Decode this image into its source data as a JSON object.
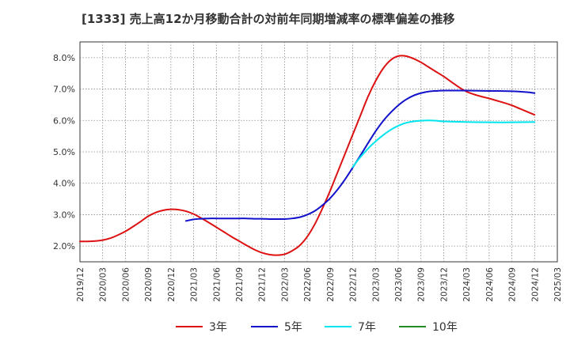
{
  "chart_data": {
    "type": "line",
    "title": "[1333]  売上高12か月移動合計の対前年同期増減率の標準偏差の推移",
    "xlabel": "",
    "ylabel": "",
    "ylim": [
      1.5,
      8.5
    ],
    "yticks": [
      2.0,
      3.0,
      4.0,
      5.0,
      6.0,
      7.0,
      8.0
    ],
    "ytick_labels": [
      "2.0%",
      "3.0%",
      "4.0%",
      "5.0%",
      "6.0%",
      "7.0%",
      "8.0%"
    ],
    "xtick_labels": [
      "2019/12",
      "2020/03",
      "2020/06",
      "2020/09",
      "2020/12",
      "2021/03",
      "2021/06",
      "2021/09",
      "2021/12",
      "2022/03",
      "2022/06",
      "2022/09",
      "2022/12",
      "2023/03",
      "2023/06",
      "2023/09",
      "2023/12",
      "2024/03",
      "2024/06",
      "2024/09",
      "2024/12",
      "2025/03"
    ],
    "grid": true,
    "legend_position": "bottom",
    "series": [
      {
        "name": "3年",
        "color": "#dd1111",
        "points": [
          [
            "2019/12",
            2.15
          ],
          [
            "2020/01",
            2.15
          ],
          [
            "2020/02",
            2.16
          ],
          [
            "2020/03",
            2.19
          ],
          [
            "2020/04",
            2.25
          ],
          [
            "2020/05",
            2.35
          ],
          [
            "2020/06",
            2.47
          ],
          [
            "2020/07",
            2.62
          ],
          [
            "2020/08",
            2.78
          ],
          [
            "2020/09",
            2.95
          ],
          [
            "2020/10",
            3.07
          ],
          [
            "2020/11",
            3.14
          ],
          [
            "2020/12",
            3.17
          ],
          [
            "2021/01",
            3.16
          ],
          [
            "2021/02",
            3.11
          ],
          [
            "2021/03",
            3.02
          ],
          [
            "2021/04",
            2.89
          ],
          [
            "2021/05",
            2.75
          ],
          [
            "2021/06",
            2.6
          ],
          [
            "2021/07",
            2.45
          ],
          [
            "2021/08",
            2.3
          ],
          [
            "2021/09",
            2.16
          ],
          [
            "2021/10",
            2.02
          ],
          [
            "2021/11",
            1.89
          ],
          [
            "2021/12",
            1.79
          ],
          [
            "2022/01",
            1.73
          ],
          [
            "2022/02",
            1.71
          ],
          [
            "2022/03",
            1.74
          ],
          [
            "2022/04",
            1.85
          ],
          [
            "2022/05",
            2.02
          ],
          [
            "2022/06",
            2.3
          ],
          [
            "2022/07",
            2.7
          ],
          [
            "2022/08",
            3.2
          ],
          [
            "2022/09",
            3.75
          ],
          [
            "2022/10",
            4.35
          ],
          [
            "2022/11",
            4.95
          ],
          [
            "2022/12",
            5.55
          ],
          [
            "2023/01",
            6.15
          ],
          [
            "2023/02",
            6.75
          ],
          [
            "2023/03",
            7.25
          ],
          [
            "2023/04",
            7.65
          ],
          [
            "2023/05",
            7.92
          ],
          [
            "2023/06",
            8.05
          ],
          [
            "2023/07",
            8.05
          ],
          [
            "2023/08",
            7.97
          ],
          [
            "2023/09",
            7.85
          ],
          [
            "2023/10",
            7.7
          ],
          [
            "2023/11",
            7.55
          ],
          [
            "2023/12",
            7.4
          ],
          [
            "2024/01",
            7.23
          ],
          [
            "2024/02",
            7.06
          ],
          [
            "2024/03",
            6.92
          ],
          [
            "2024/04",
            6.83
          ],
          [
            "2024/05",
            6.76
          ],
          [
            "2024/06",
            6.7
          ],
          [
            "2024/07",
            6.63
          ],
          [
            "2024/08",
            6.56
          ],
          [
            "2024/09",
            6.48
          ],
          [
            "2024/10",
            6.38
          ],
          [
            "2024/11",
            6.28
          ],
          [
            "2024/12",
            6.18
          ]
        ]
      },
      {
        "name": "5年",
        "color": "#1111cc",
        "points": [
          [
            "2021/02",
            2.8
          ],
          [
            "2021/03",
            2.85
          ],
          [
            "2021/04",
            2.87
          ],
          [
            "2021/05",
            2.88
          ],
          [
            "2021/06",
            2.88
          ],
          [
            "2021/07",
            2.88
          ],
          [
            "2021/08",
            2.88
          ],
          [
            "2021/09",
            2.88
          ],
          [
            "2021/10",
            2.88
          ],
          [
            "2021/11",
            2.87
          ],
          [
            "2021/12",
            2.87
          ],
          [
            "2022/01",
            2.86
          ],
          [
            "2022/02",
            2.86
          ],
          [
            "2022/03",
            2.86
          ],
          [
            "2022/04",
            2.88
          ],
          [
            "2022/05",
            2.92
          ],
          [
            "2022/06",
            3.0
          ],
          [
            "2022/07",
            3.12
          ],
          [
            "2022/08",
            3.3
          ],
          [
            "2022/09",
            3.52
          ],
          [
            "2022/10",
            3.8
          ],
          [
            "2022/11",
            4.13
          ],
          [
            "2022/12",
            4.5
          ],
          [
            "2023/01",
            4.88
          ],
          [
            "2023/02",
            5.27
          ],
          [
            "2023/03",
            5.65
          ],
          [
            "2023/04",
            5.98
          ],
          [
            "2023/05",
            6.25
          ],
          [
            "2023/06",
            6.48
          ],
          [
            "2023/07",
            6.66
          ],
          [
            "2023/08",
            6.79
          ],
          [
            "2023/09",
            6.87
          ],
          [
            "2023/10",
            6.92
          ],
          [
            "2023/11",
            6.94
          ],
          [
            "2023/12",
            6.95
          ],
          [
            "2024/03",
            6.95
          ],
          [
            "2024/06",
            6.94
          ],
          [
            "2024/09",
            6.93
          ],
          [
            "2024/11",
            6.9
          ],
          [
            "2024/12",
            6.87
          ]
        ]
      },
      {
        "name": "7年",
        "color": "#00e5ee",
        "points": [
          [
            "2022/12",
            4.52
          ],
          [
            "2023/01",
            4.83
          ],
          [
            "2023/02",
            5.1
          ],
          [
            "2023/03",
            5.33
          ],
          [
            "2023/04",
            5.53
          ],
          [
            "2023/05",
            5.7
          ],
          [
            "2023/06",
            5.83
          ],
          [
            "2023/07",
            5.92
          ],
          [
            "2023/08",
            5.97
          ],
          [
            "2023/09",
            5.99
          ],
          [
            "2023/10",
            6.0
          ],
          [
            "2023/11",
            5.99
          ],
          [
            "2023/12",
            5.97
          ],
          [
            "2024/03",
            5.95
          ],
          [
            "2024/06",
            5.94
          ],
          [
            "2024/09",
            5.94
          ],
          [
            "2024/12",
            5.95
          ]
        ]
      },
      {
        "name": "10年",
        "color": "#228b22",
        "points": []
      }
    ]
  }
}
